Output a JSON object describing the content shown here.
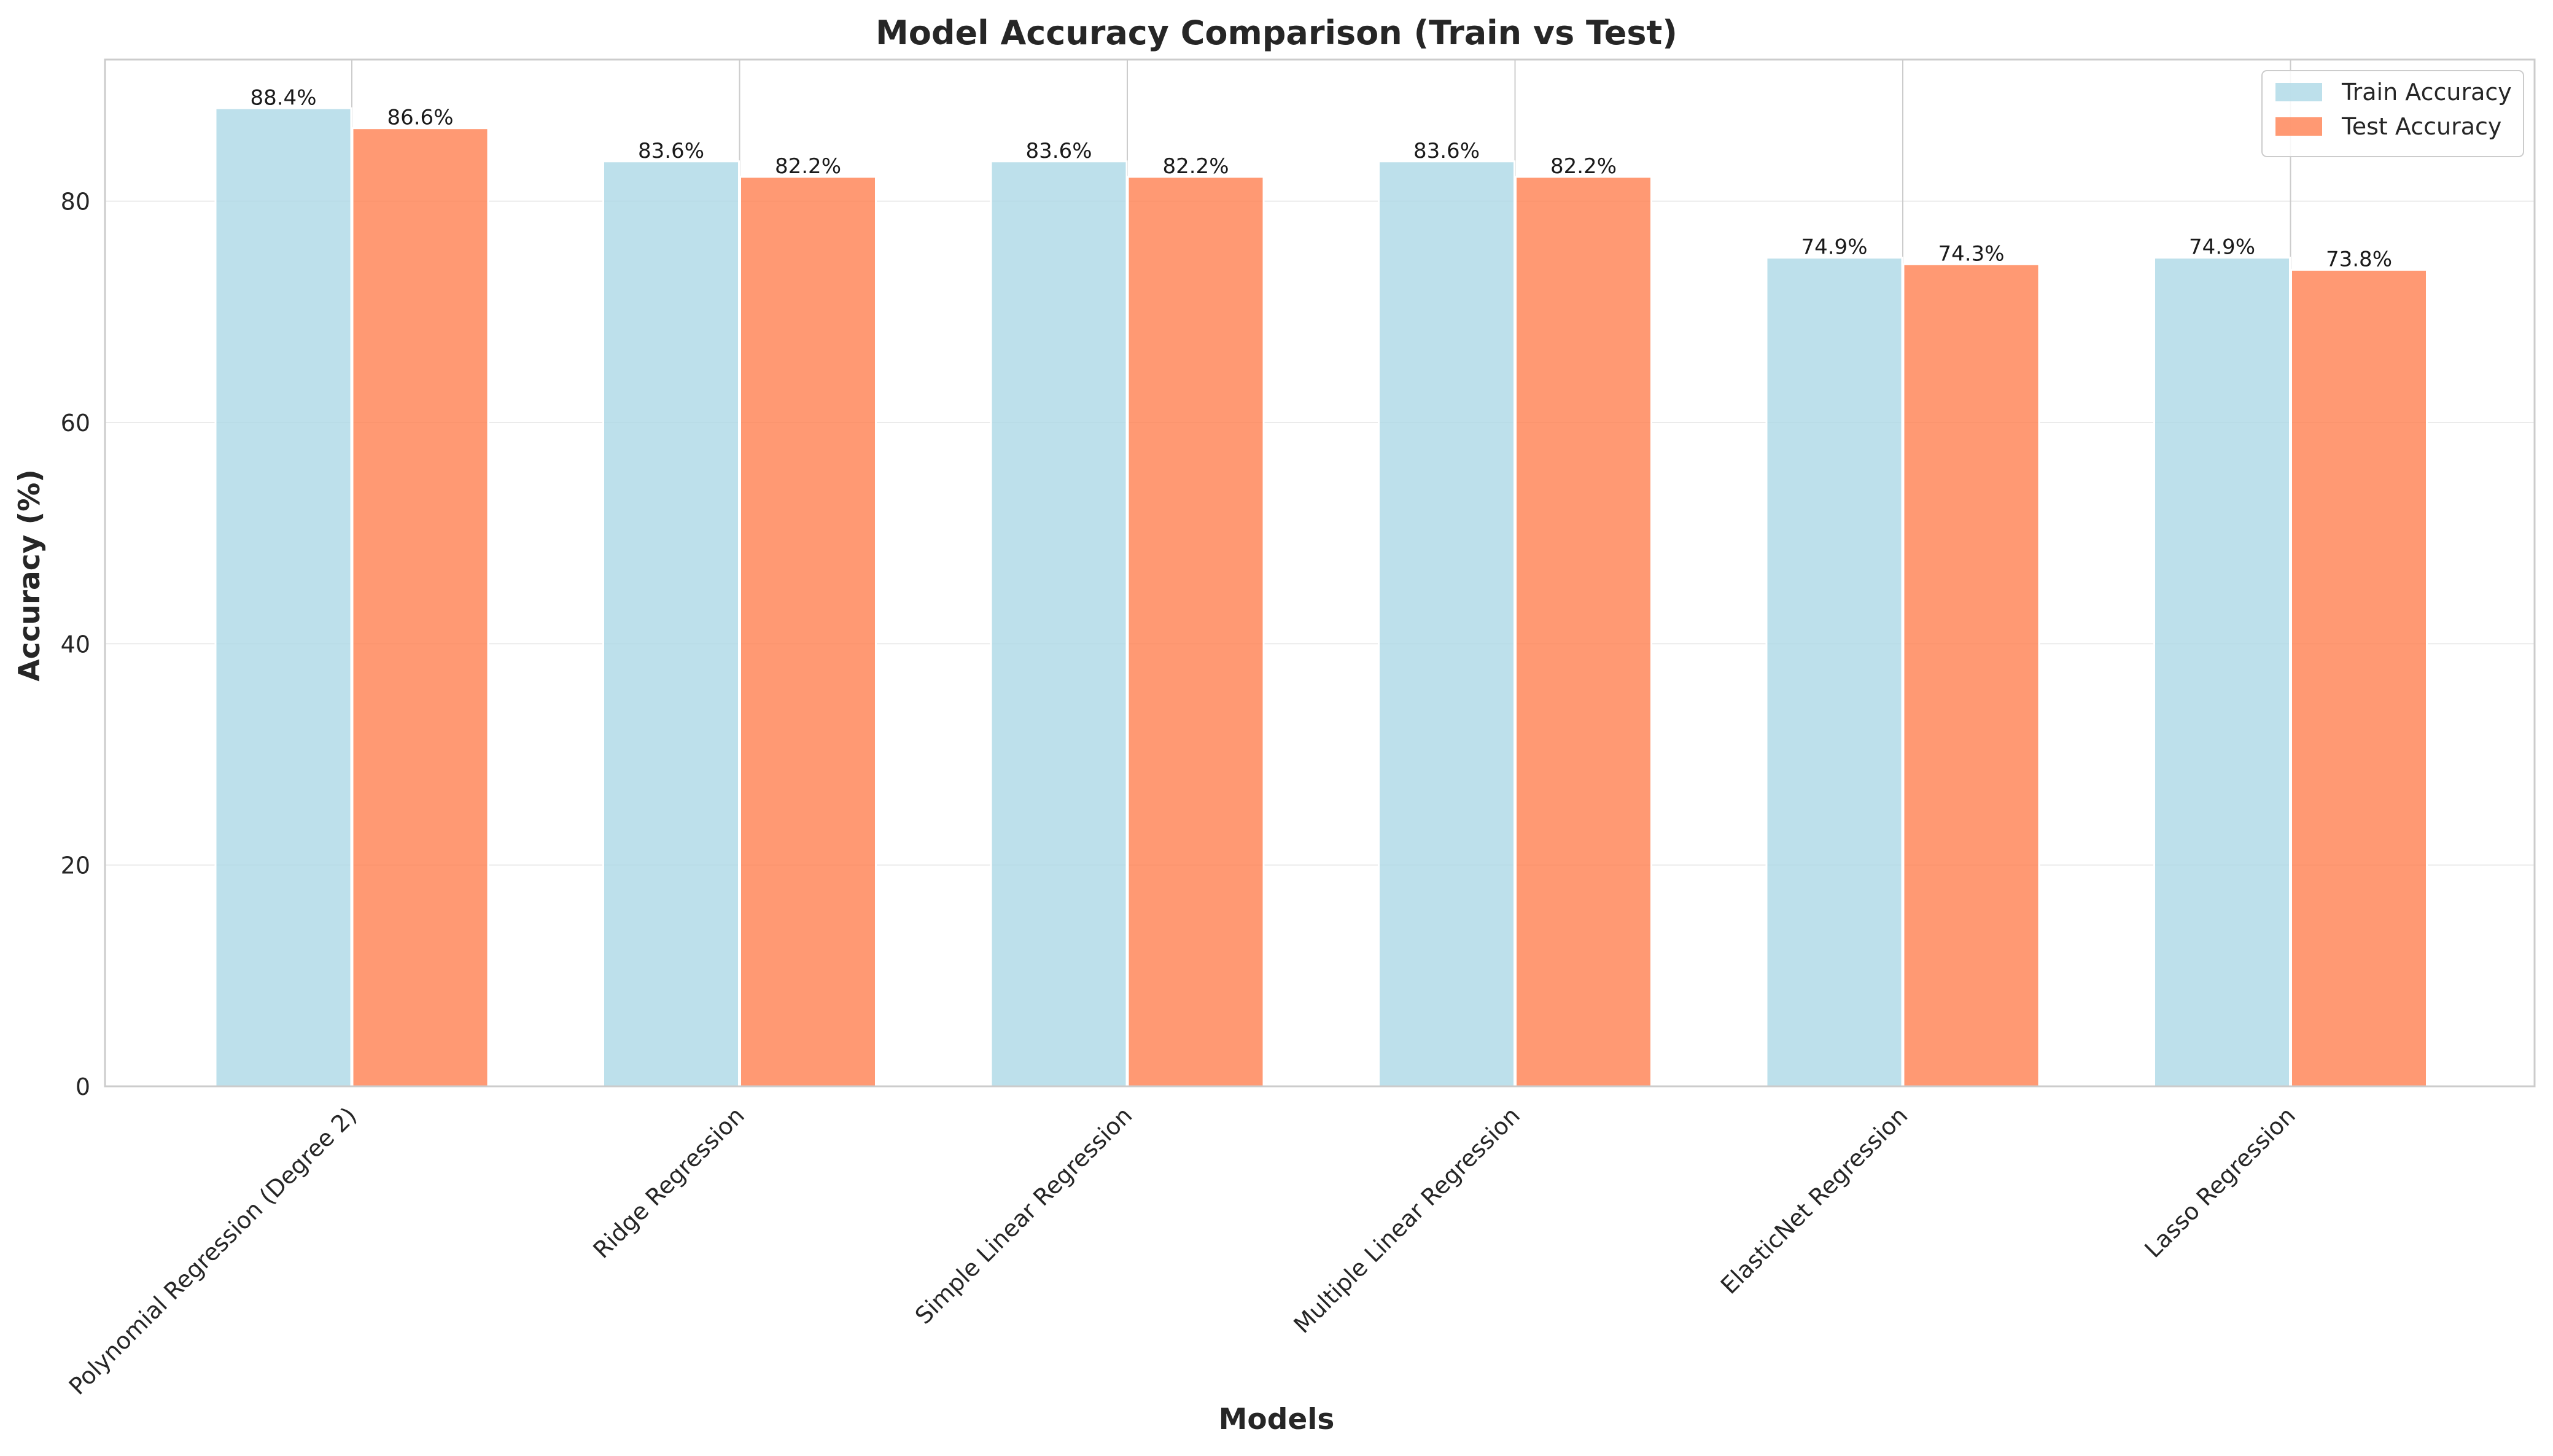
{
  "chart_data": {
    "type": "bar",
    "title": "Model Accuracy Comparison (Train vs Test)",
    "xlabel": "Models",
    "ylabel": "Accuracy (%)",
    "categories": [
      "Polynomial Regression (Degree 2)",
      "Ridge Regression",
      "Simple Linear Regression",
      "Multiple Linear Regression",
      "ElasticNet Regression",
      "Lasso Regression"
    ],
    "series": [
      {
        "name": "Train Accuracy",
        "values": [
          88.4,
          83.6,
          83.6,
          83.6,
          74.9,
          74.9
        ],
        "labels": [
          "88.4%",
          "83.6%",
          "83.6%",
          "83.6%",
          "74.9%",
          "74.9%"
        ],
        "color": "#add8e6"
      },
      {
        "name": "Test Accuracy",
        "values": [
          86.6,
          82.2,
          82.2,
          82.2,
          74.3,
          73.8
        ],
        "labels": [
          "86.6%",
          "82.2%",
          "82.2%",
          "82.2%",
          "74.3%",
          "73.8%"
        ],
        "color": "#ff7f50"
      }
    ],
    "ylim": [
      0,
      92.8
    ],
    "yticks": [
      0,
      20,
      40,
      60,
      80
    ],
    "grid": true,
    "legend_position": "top-right",
    "colors": {
      "grid": "#ebebeb",
      "axis": "#cccccc",
      "text": "#262626"
    }
  }
}
